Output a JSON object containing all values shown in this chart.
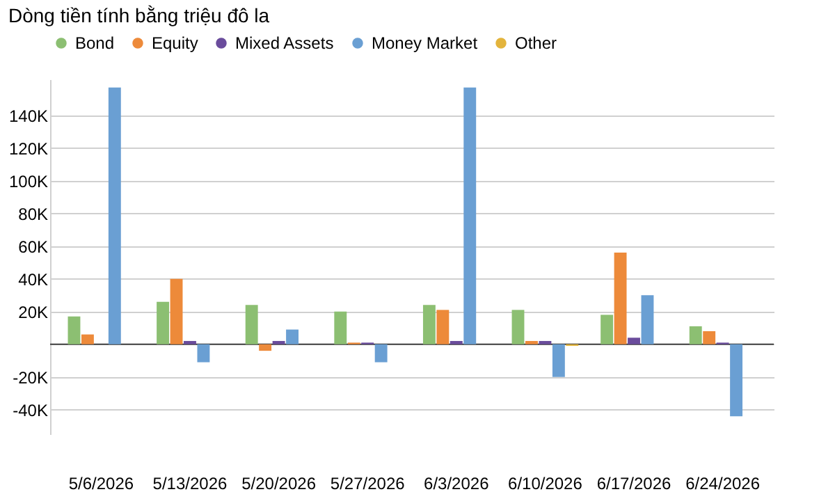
{
  "chart_data": {
    "type": "bar",
    "title": "Dòng tiền tính bằng triệu đô la",
    "categories": [
      "5/6/2026",
      "5/13/2026",
      "5/20/2026",
      "5/27/2026",
      "6/3/2026",
      "6/10/2026",
      "6/17/2026",
      "6/24/2026"
    ],
    "series": [
      {
        "name": "Bond",
        "color": "#8cbf72",
        "values": [
          17000,
          26000,
          24000,
          20000,
          24000,
          21000,
          18000,
          11000
        ]
      },
      {
        "name": "Equity",
        "color": "#ed8a3a",
        "values": [
          6000,
          40000,
          -4000,
          1000,
          21000,
          2000,
          56000,
          8000
        ]
      },
      {
        "name": "Mixed Assets",
        "color": "#6a4c9c",
        "values": [
          0,
          2000,
          2000,
          1000,
          2000,
          2000,
          4000,
          1000
        ]
      },
      {
        "name": "Money Market",
        "color": "#6a9fd3",
        "values": [
          157000,
          -11000,
          9000,
          -11000,
          157000,
          -20000,
          30000,
          -44000
        ]
      },
      {
        "name": "Other",
        "color": "#e3b43c",
        "values": [
          0,
          0,
          0,
          0,
          0,
          -1000,
          0,
          0
        ]
      }
    ],
    "ylim": [
      -55000,
      162000
    ],
    "yticks": [
      {
        "value": -40000,
        "label": "-40K"
      },
      {
        "value": -20000,
        "label": "-20K"
      },
      {
        "value": 0,
        "label": null
      },
      {
        "value": 20000,
        "label": "20K"
      },
      {
        "value": 40000,
        "label": "40K"
      },
      {
        "value": 60000,
        "label": "60K"
      },
      {
        "value": 80000,
        "label": "80K"
      },
      {
        "value": 100000,
        "label": "100K"
      },
      {
        "value": 120000,
        "label": "120K"
      },
      {
        "value": 140000,
        "label": "140K"
      }
    ],
    "ref_lines": [
      {
        "axis": "y",
        "value": 0,
        "color": "#404040"
      }
    ],
    "grid": "y",
    "legend": "top left"
  }
}
